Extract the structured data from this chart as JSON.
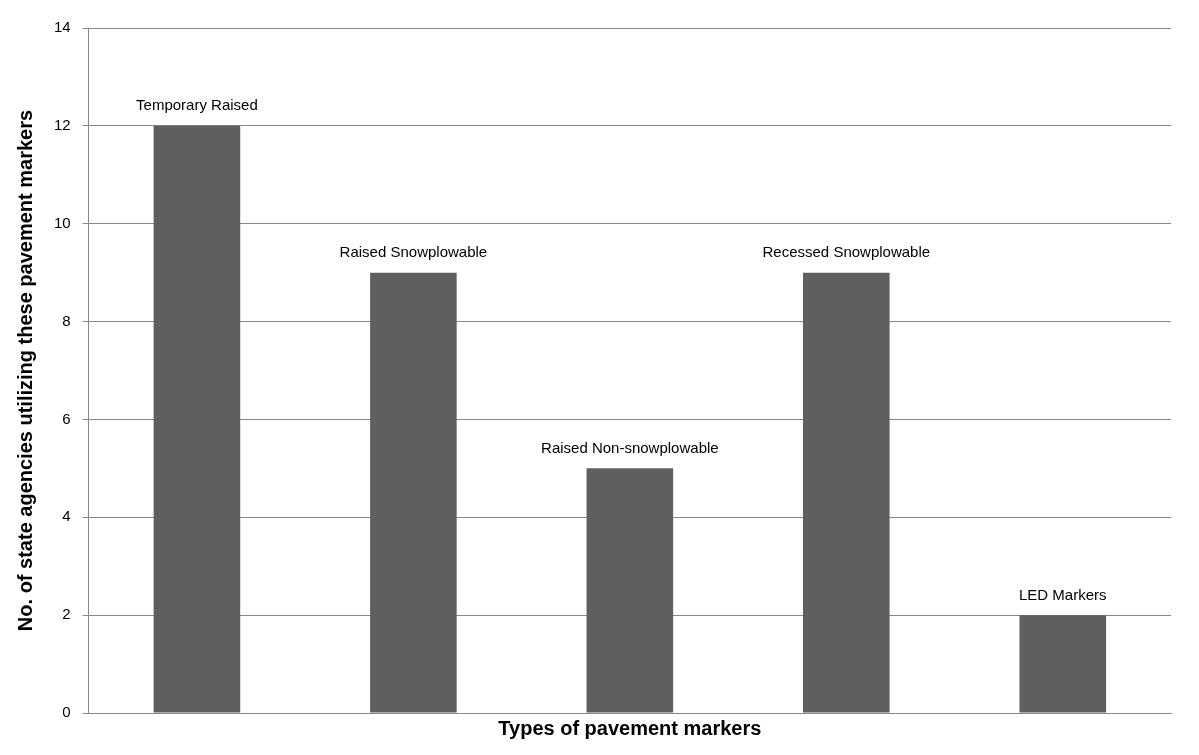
{
  "chart_data": {
    "type": "bar",
    "xlabel": "Types of pavement markers",
    "ylabel": "No. of state agencies utilizing these pavement markers",
    "categories": [
      "Temporary Raised",
      "Raised Snowplowable",
      "Raised Non-snowplowable",
      "Recessed Snowplowable",
      "LED Markers"
    ],
    "values": [
      12,
      9,
      5,
      9,
      2
    ],
    "color": "#5f5f5f",
    "ylim": [
      0,
      14
    ],
    "yticks": [
      0,
      2,
      4,
      6,
      8,
      10,
      12,
      14
    ],
    "grid": "y",
    "tick_labels": "y"
  }
}
